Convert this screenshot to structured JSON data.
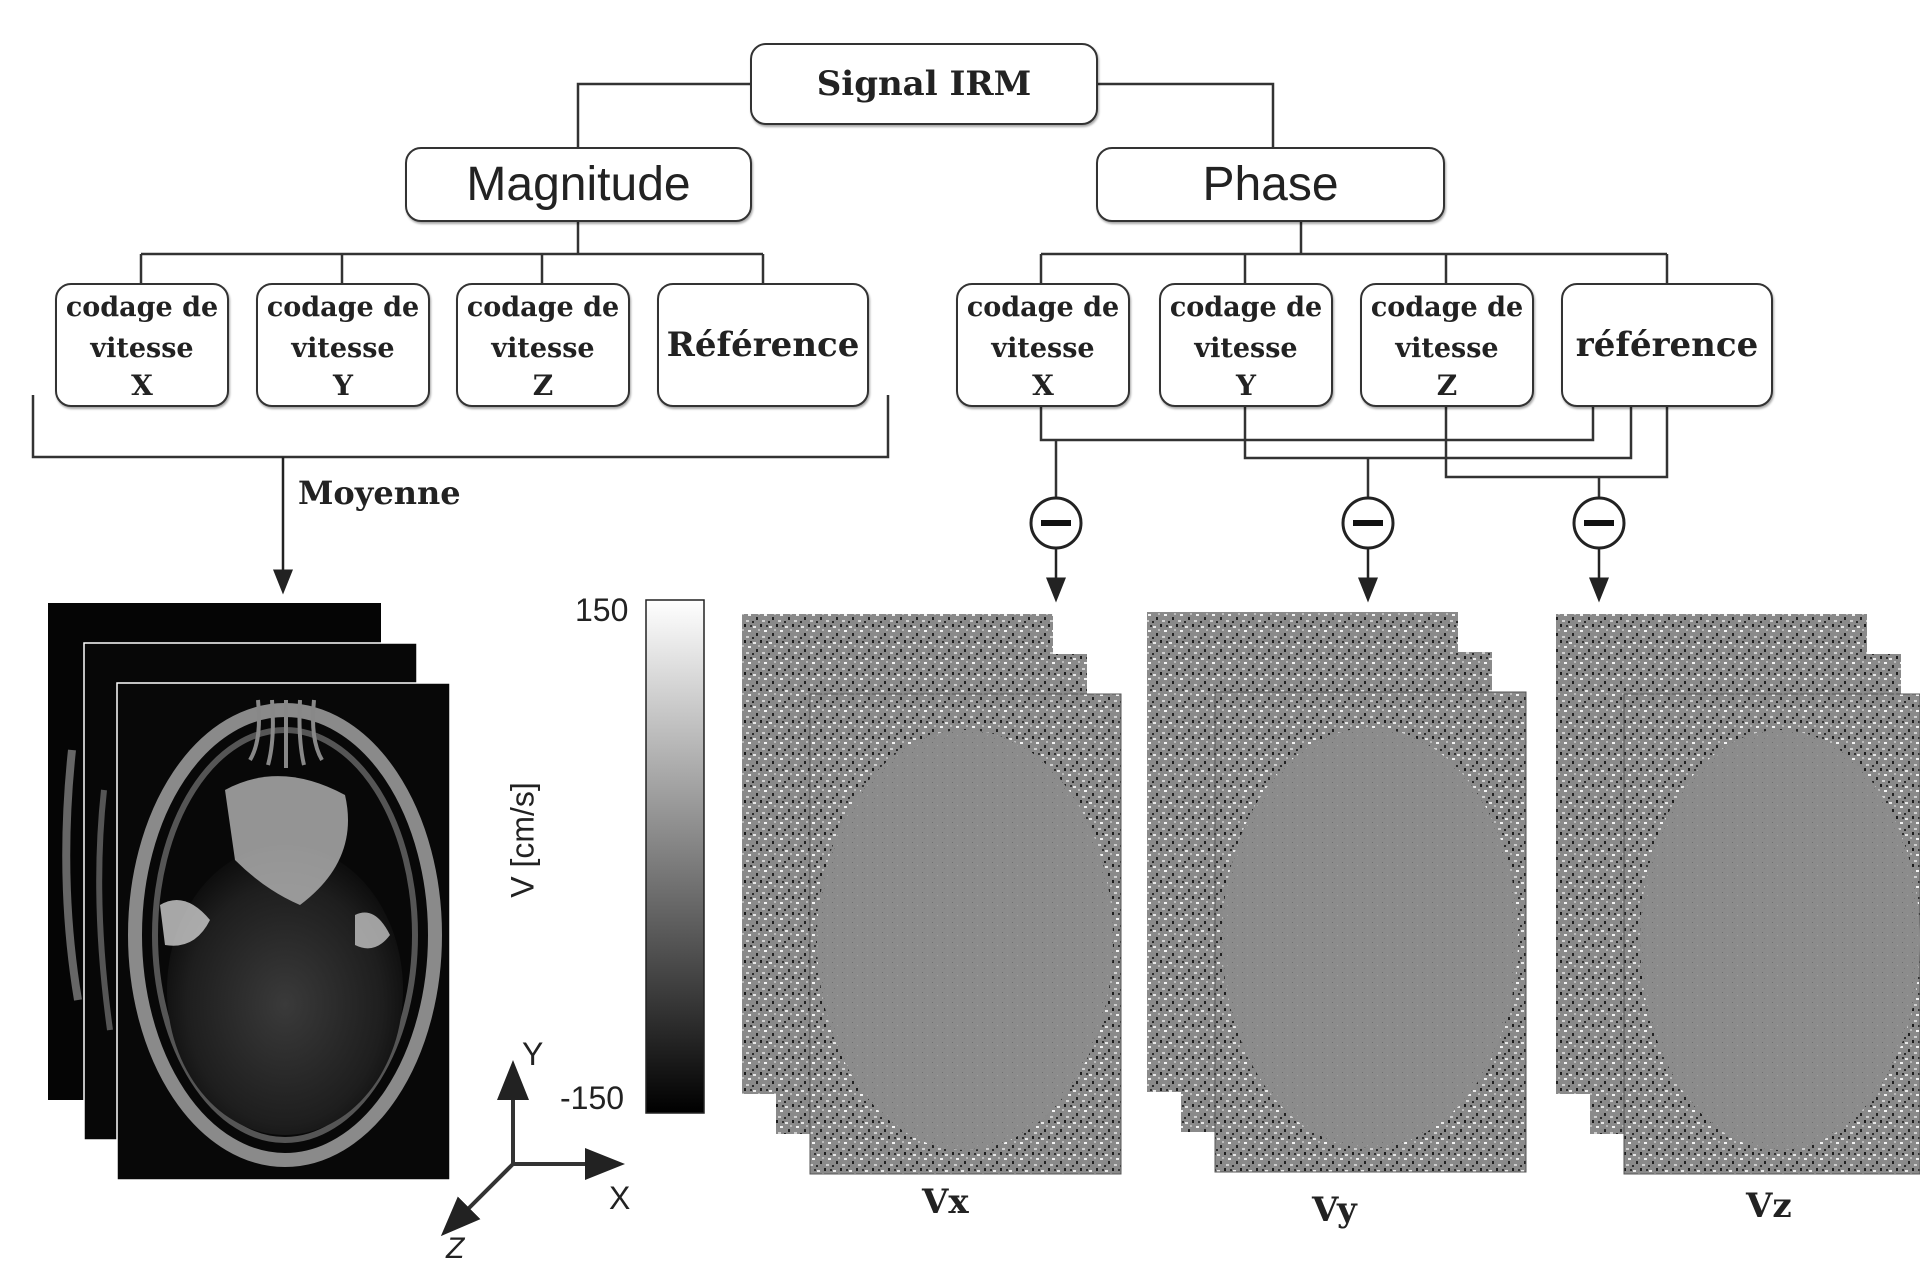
{
  "title": "Signal IRM",
  "magnitude": {
    "label": "Magnitude",
    "encodings": [
      {
        "line1": "codage de",
        "line2": "vitesse",
        "axis": "X"
      },
      {
        "line1": "codage de",
        "line2": "vitesse",
        "axis": "Y"
      },
      {
        "line1": "codage de",
        "line2": "vitesse",
        "axis": "Z"
      }
    ],
    "reference": "Référence",
    "average_label": "Moyenne"
  },
  "phase": {
    "label": "Phase",
    "encodings": [
      {
        "line1": "codage de",
        "line2": "vitesse",
        "axis": "X"
      },
      {
        "line1": "codage de",
        "line2": "vitesse",
        "axis": "Y"
      },
      {
        "line1": "codage de",
        "line2": "vitesse",
        "axis": "Z"
      }
    ],
    "reference": "référence"
  },
  "colorbar": {
    "max": "150",
    "min": "-150",
    "label": "V [cm/s]"
  },
  "outputs": [
    "Vx",
    "Vy",
    "Vz"
  ],
  "axes": {
    "x": "X",
    "y": "Y",
    "z": "Z"
  },
  "minus_symbol": "minus"
}
